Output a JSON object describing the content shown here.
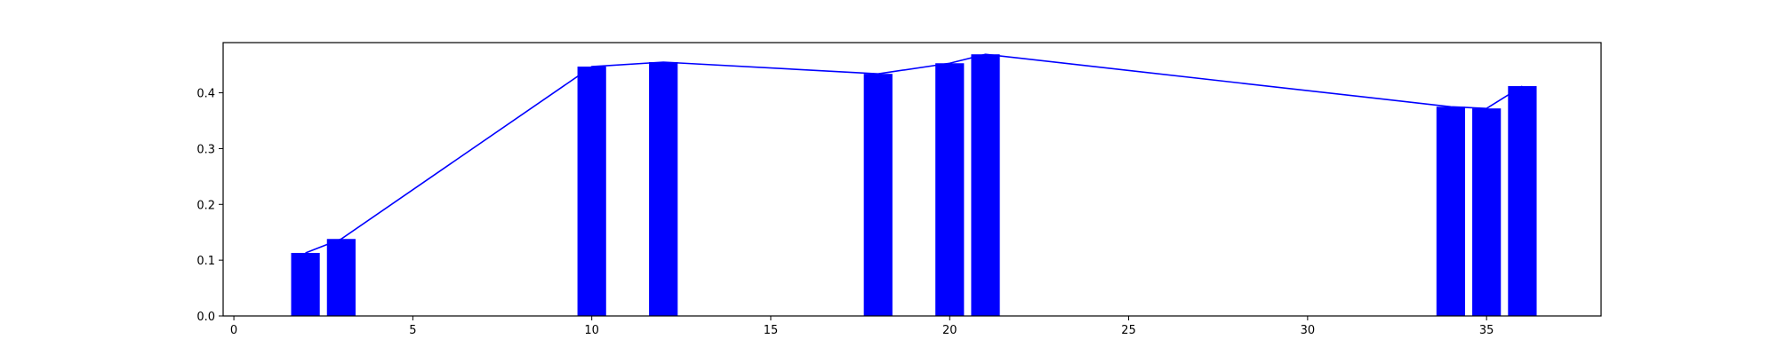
{
  "chart_data": {
    "type": "bar",
    "title": "",
    "xlabel": "",
    "ylabel": "",
    "xlim": [
      -0.3,
      38.2
    ],
    "ylim": [
      0,
      0.49
    ],
    "grid": false,
    "bar_width": 0.8,
    "color": "#0000ff",
    "x": [
      2,
      3,
      10,
      12,
      18,
      20,
      21,
      34,
      35,
      36
    ],
    "values": [
      0.113,
      0.138,
      0.447,
      0.455,
      0.434,
      0.453,
      0.469,
      0.375,
      0.372,
      0.412
    ],
    "overlay_line": {
      "type": "line",
      "x": [
        2,
        3,
        10,
        12,
        18,
        20,
        21,
        34,
        35,
        36
      ],
      "values": [
        0.113,
        0.138,
        0.447,
        0.455,
        0.434,
        0.453,
        0.469,
        0.375,
        0.372,
        0.412
      ]
    },
    "x_ticks": [
      0,
      5,
      10,
      15,
      20,
      25,
      30,
      35
    ],
    "x_tick_labels": [
      "0",
      "5",
      "10",
      "15",
      "20",
      "25",
      "30",
      "35"
    ],
    "y_ticks": [
      0.0,
      0.1,
      0.2,
      0.3,
      0.4
    ],
    "y_tick_labels": [
      "0.0",
      "0.1",
      "0.2",
      "0.3",
      "0.4"
    ]
  }
}
